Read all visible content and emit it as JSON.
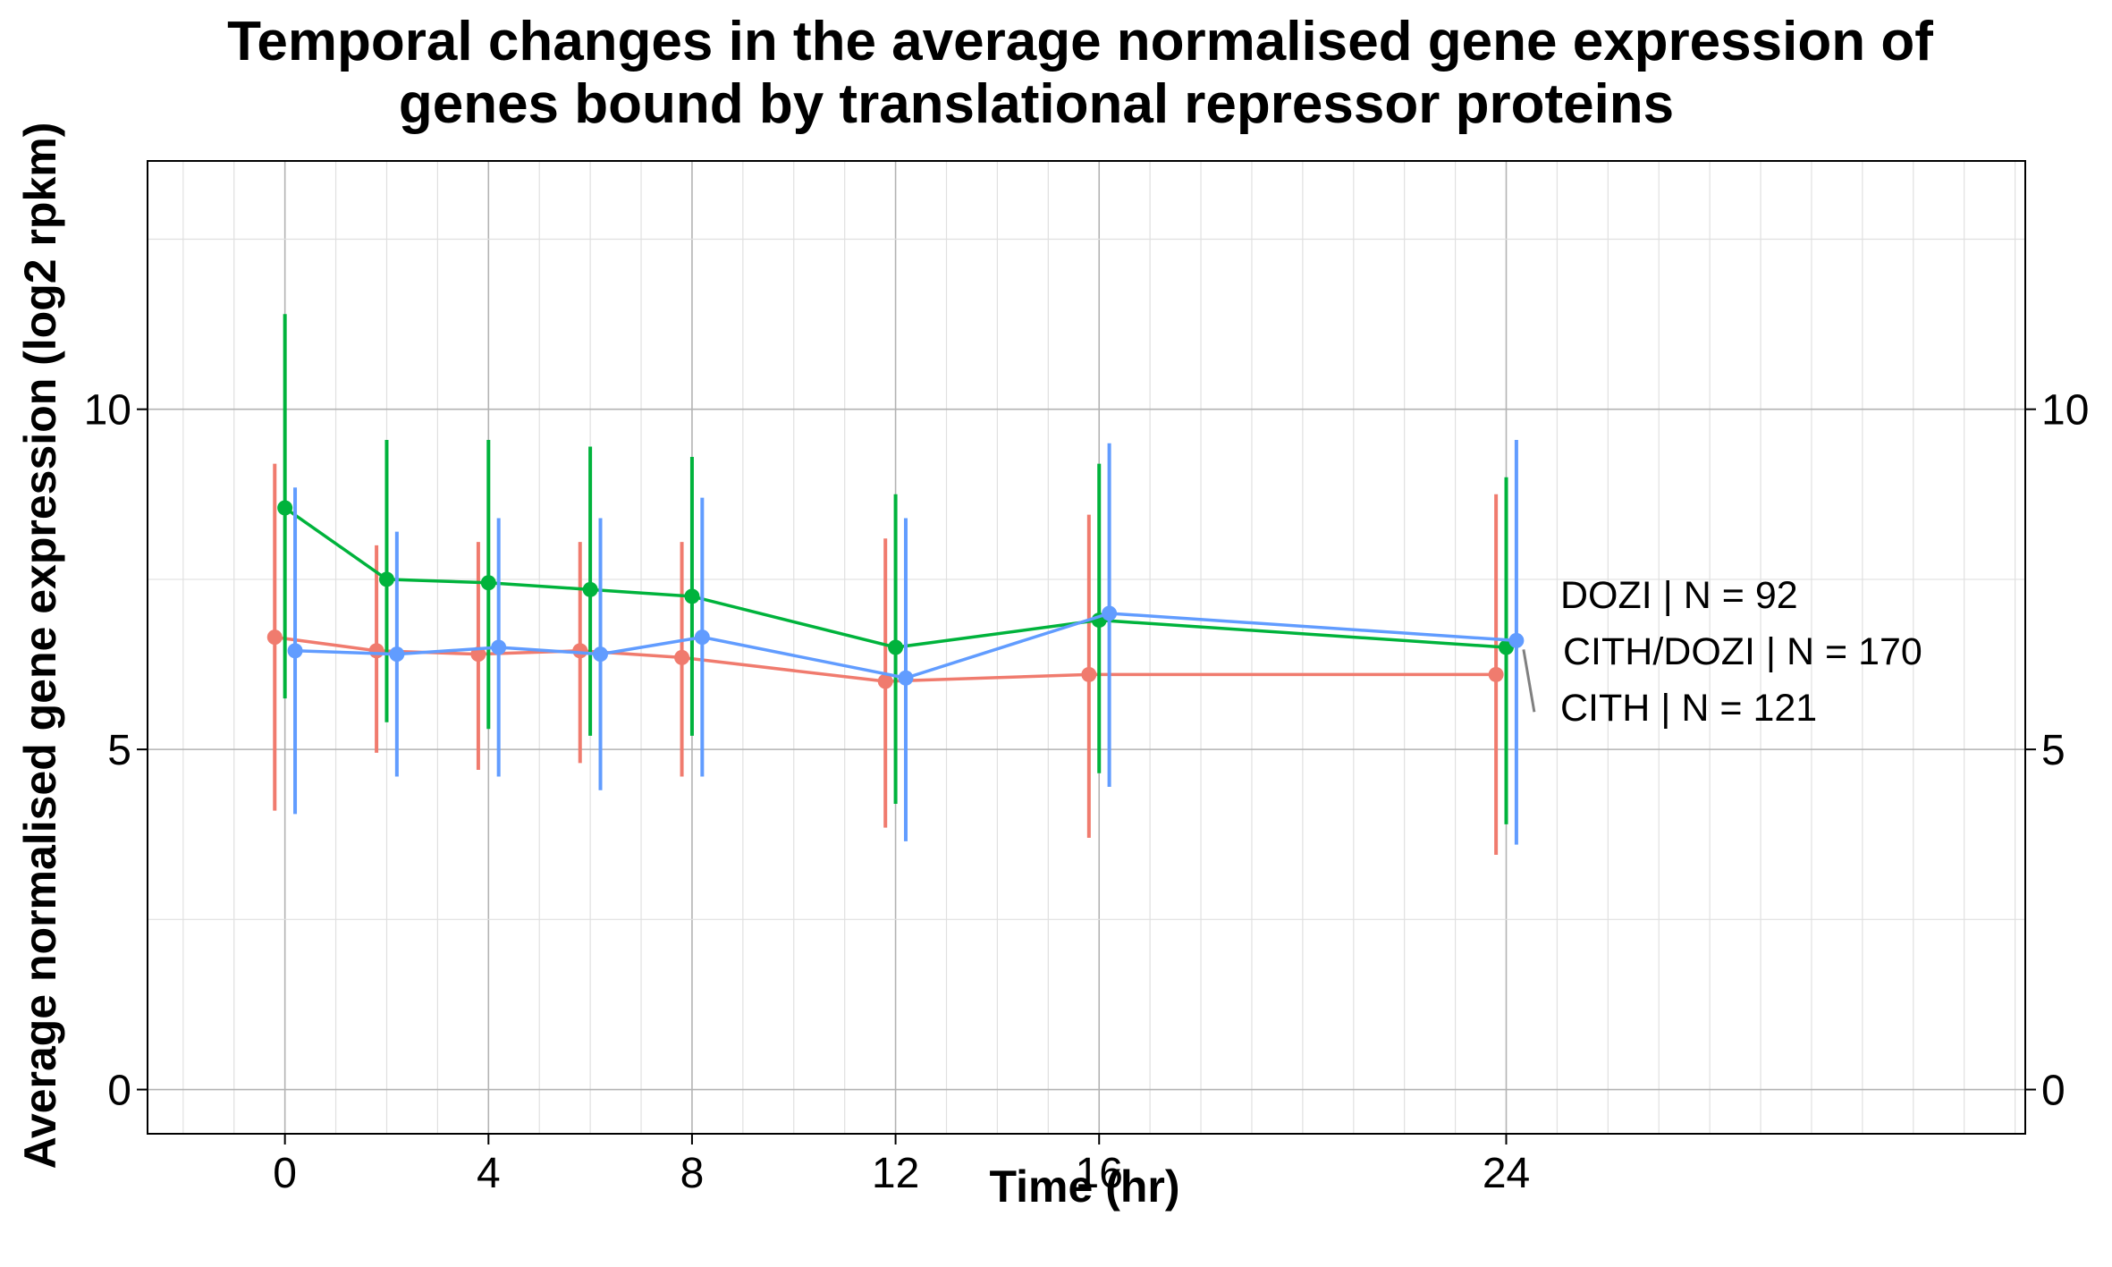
{
  "chart_data": {
    "type": "line",
    "title_line1": "Temporal changes in the average normalised gene expression of",
    "title_line2": "genes bound by translational repressor proteins",
    "xlabel": "Time (hr)",
    "ylabel": "Average normalised gene expression (log2 rpkm)",
    "xlim": [
      -2.7,
      34.2
    ],
    "ylim": [
      -0.65,
      13.65
    ],
    "x_ticks": [
      0,
      4,
      8,
      12,
      16,
      24
    ],
    "y_ticks": [
      0,
      5,
      10
    ],
    "grid": true,
    "secondary_y_axis": true,
    "series": [
      {
        "label": "CITH  | N =  121",
        "color": "#F07B6E",
        "x": [
          0,
          2,
          4,
          6,
          8,
          12,
          16,
          24
        ],
        "x_offset": -0.2,
        "y": [
          6.65,
          6.45,
          6.4,
          6.45,
          6.35,
          6.0,
          6.1,
          6.1
        ],
        "err_low": [
          4.1,
          4.95,
          4.7,
          4.8,
          4.6,
          3.85,
          3.7,
          3.45
        ],
        "err_high": [
          9.2,
          8.0,
          8.05,
          8.05,
          8.05,
          8.1,
          8.45,
          8.75
        ]
      },
      {
        "label": "CITH/DOZI  | N =  170",
        "color": "#00B33C",
        "x": [
          0,
          2,
          4,
          6,
          8,
          12,
          16,
          24
        ],
        "x_offset": 0.0,
        "y": [
          8.55,
          7.5,
          7.45,
          7.35,
          7.25,
          6.5,
          6.9,
          6.5
        ],
        "err_low": [
          5.75,
          5.4,
          5.3,
          5.2,
          5.2,
          4.2,
          4.65,
          3.9
        ],
        "err_high": [
          11.4,
          9.55,
          9.55,
          9.45,
          9.3,
          8.75,
          9.2,
          9.0
        ]
      },
      {
        "label": "DOZI  | N =  92",
        "color": "#619CFF",
        "x": [
          0,
          2,
          4,
          6,
          8,
          12,
          16,
          24
        ],
        "x_offset": 0.2,
        "y": [
          6.45,
          6.4,
          6.5,
          6.4,
          6.65,
          6.05,
          7.0,
          6.6
        ],
        "err_low": [
          4.05,
          4.6,
          4.6,
          4.4,
          4.6,
          3.65,
          4.45,
          3.6
        ],
        "err_high": [
          8.85,
          8.2,
          8.4,
          8.4,
          8.7,
          8.4,
          9.5,
          9.55
        ]
      }
    ],
    "legend_order": [
      "DOZI  | N =  92",
      "CITH/DOZI  | N =  170",
      "CITH  | N =  121"
    ],
    "legend_position": "right, next to final points"
  }
}
